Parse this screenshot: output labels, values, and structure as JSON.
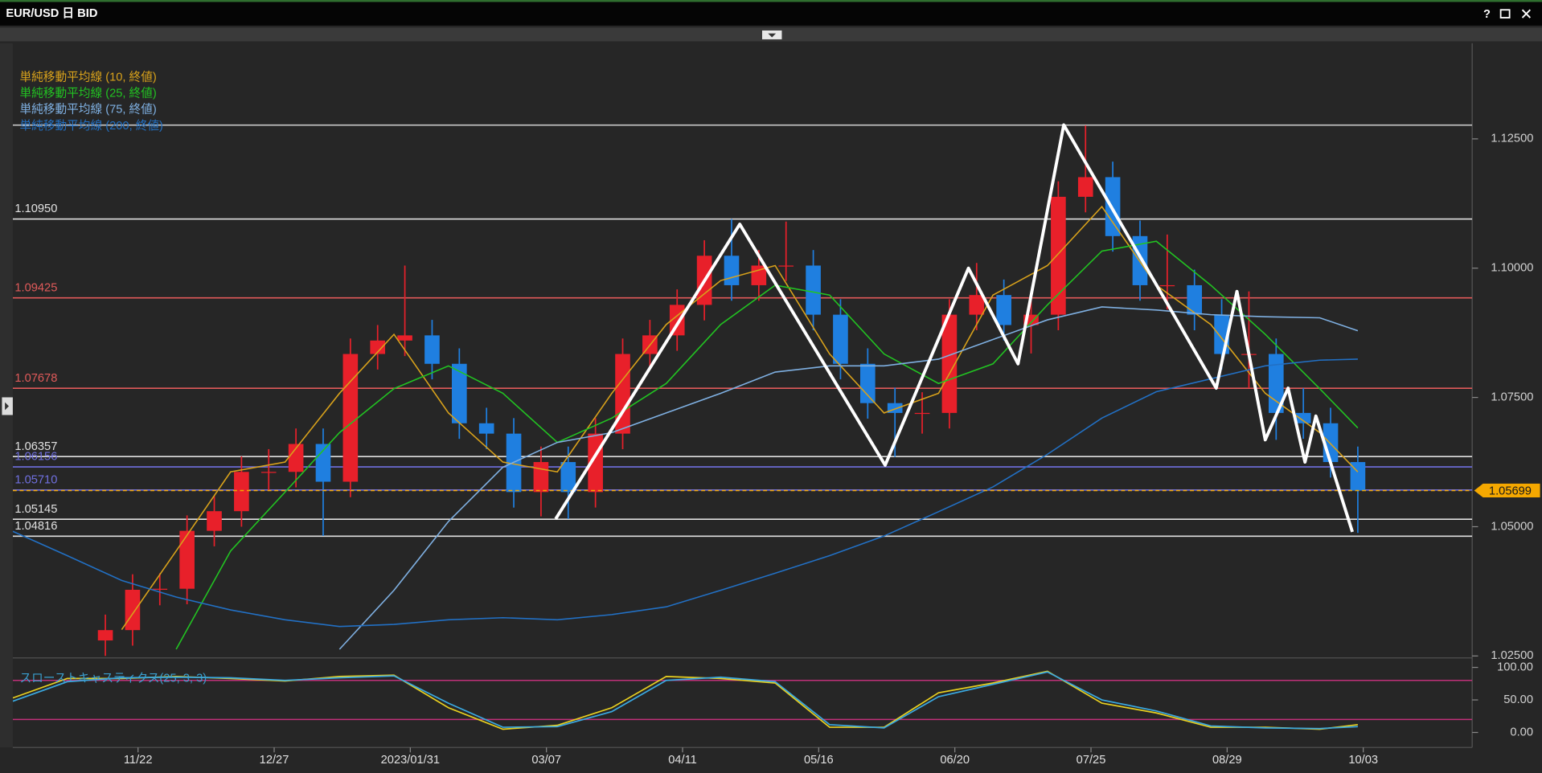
{
  "window": {
    "title": "EUR/USD 日 BID",
    "help": "?"
  },
  "chart_data": [
    {
      "type": "candlestick",
      "x": [
        17,
        22,
        27,
        32,
        37,
        42,
        47,
        52,
        57,
        62,
        67,
        72,
        77,
        82,
        87,
        92,
        97,
        102,
        107,
        112,
        117,
        122,
        127,
        132,
        137,
        142,
        147,
        152,
        157,
        162,
        167,
        172,
        177,
        182,
        187,
        192,
        197,
        202,
        207,
        212,
        217,
        222,
        227,
        232,
        237,
        242,
        247
      ],
      "open": [
        1.028,
        1.03,
        1.0378,
        1.038,
        1.0492,
        1.053,
        1.0606,
        1.0606,
        1.066,
        1.0587,
        1.0834,
        1.086,
        1.087,
        1.0815,
        1.07,
        1.068,
        1.0567,
        1.0625,
        1.0567,
        1.068,
        1.0834,
        1.087,
        1.0929,
        1.1024,
        1.0967,
        1.1005,
        1.1005,
        1.091,
        1.0815,
        1.0739,
        1.072,
        1.072,
        1.091,
        1.0948,
        1.089,
        1.091,
        1.1138,
        1.1176,
        1.1062,
        1.0967,
        1.0967,
        1.091,
        1.0834,
        1.0834,
        1.072,
        1.07,
        1.0625
      ],
      "high": [
        1.033,
        1.0408,
        1.041,
        1.0522,
        1.056,
        1.0636,
        1.065,
        1.069,
        1.069,
        1.0864,
        1.089,
        1.1005,
        1.09,
        1.0845,
        1.073,
        1.071,
        1.0655,
        1.0655,
        1.071,
        1.0864,
        1.09,
        1.0959,
        1.1054,
        1.1095,
        1.1035,
        1.109,
        1.1035,
        1.094,
        1.0845,
        1.0769,
        1.076,
        1.094,
        1.101,
        1.0978,
        1.094,
        1.1168,
        1.1276,
        1.1206,
        1.1092,
        1.1065,
        1.0997,
        1.094,
        1.0955,
        1.0864,
        1.0768,
        1.073,
        1.0655
      ],
      "low": [
        1.025,
        1.027,
        1.0348,
        1.035,
        1.0462,
        1.05,
        1.057,
        1.0576,
        1.0482,
        1.0557,
        1.0804,
        1.083,
        1.0785,
        1.067,
        1.065,
        1.0537,
        1.052,
        1.0515,
        1.0537,
        1.065,
        1.0804,
        1.084,
        1.0899,
        1.0937,
        1.0937,
        1.0975,
        1.088,
        1.0785,
        1.0709,
        1.0635,
        1.068,
        1.069,
        1.088,
        1.086,
        1.0835,
        1.088,
        1.1108,
        1.1032,
        1.0937,
        1.092,
        1.088,
        1.0804,
        1.0768,
        1.0668,
        1.067,
        1.0595,
        1.0488
      ],
      "close": [
        1.03,
        1.0378,
        1.038,
        1.0492,
        1.053,
        1.0606,
        1.0606,
        1.066,
        1.0587,
        1.0834,
        1.086,
        1.087,
        1.0815,
        1.07,
        1.068,
        1.0567,
        1.0625,
        1.0567,
        1.068,
        1.0834,
        1.087,
        1.0929,
        1.1024,
        1.0967,
        1.1005,
        1.1005,
        1.091,
        1.0815,
        1.0739,
        1.072,
        1.072,
        1.091,
        1.0948,
        1.089,
        1.091,
        1.1138,
        1.1176,
        1.1062,
        1.0967,
        1.0967,
        1.091,
        1.0834,
        1.0834,
        1.072,
        1.07,
        1.0625,
        1.057
      ],
      "up_color": "#e8202a",
      "down_color": "#1f7fe0",
      "xlim": [
        0,
        268
      ],
      "ylim": [
        1.025,
        1.1433
      ],
      "yticks": [
        {
          "value": 1.025,
          "label": "1.02500"
        },
        {
          "value": 1.05,
          "label": "1.05000"
        },
        {
          "value": 1.075,
          "label": "1.07500"
        },
        {
          "value": 1.1,
          "label": "1.10000"
        },
        {
          "value": 1.125,
          "label": "1.12500"
        }
      ],
      "series": [
        {
          "name": "単純移動平均線 (10, 終値)",
          "color": "#d9a21b",
          "x": [
            0,
            10,
            20,
            30,
            40,
            50,
            60,
            70,
            80,
            90,
            100,
            110,
            120,
            130,
            140,
            150,
            160,
            170,
            180,
            190,
            200,
            210,
            220,
            230,
            240,
            247
          ],
          "values": [
            null,
            null,
            1.0301,
            1.0453,
            1.0606,
            1.0625,
            1.0758,
            1.0872,
            1.072,
            1.0625,
            1.0606,
            1.0758,
            1.0891,
            1.0976,
            1.1005,
            1.0834,
            1.072,
            1.0758,
            1.0948,
            1.1005,
            1.1119,
            1.0967,
            1.0891,
            1.0758,
            1.0682,
            1.0606
          ]
        },
        {
          "name": "単純移動平均線 (25, 終値)",
          "color": "#22c322",
          "x": [
            0,
            10,
            20,
            30,
            40,
            50,
            60,
            70,
            80,
            90,
            100,
            110,
            120,
            130,
            140,
            150,
            160,
            170,
            180,
            190,
            200,
            210,
            220,
            230,
            240,
            247
          ],
          "values": [
            null,
            null,
            null,
            1.0263,
            1.0453,
            1.0567,
            1.0682,
            1.0767,
            1.0811,
            1.0758,
            1.0663,
            1.071,
            1.0777,
            1.0891,
            1.0967,
            1.0948,
            1.0834,
            1.0777,
            1.0815,
            1.0929,
            1.1033,
            1.1052,
            1.0967,
            1.0872,
            1.0767,
            1.0691
          ]
        },
        {
          "name": "単純移動平均線 (75, 終値)",
          "color": "#7fb0e2",
          "x": [
            0,
            10,
            20,
            30,
            40,
            50,
            60,
            70,
            80,
            90,
            100,
            110,
            120,
            130,
            140,
            150,
            160,
            170,
            180,
            190,
            200,
            210,
            220,
            230,
            240,
            247
          ],
          "values": [
            null,
            null,
            null,
            null,
            null,
            null,
            1.0263,
            1.0377,
            1.051,
            1.0615,
            1.0663,
            1.0682,
            1.072,
            1.0758,
            1.0799,
            1.0811,
            1.0811,
            1.0824,
            1.0862,
            1.09,
            1.0925,
            1.0919,
            1.091,
            1.0906,
            1.0904,
            1.0879
          ]
        },
        {
          "name": "単純移動平均線 (200, 終値)",
          "color": "#2270c4",
          "x": [
            0,
            10,
            20,
            30,
            40,
            50,
            60,
            70,
            80,
            90,
            100,
            110,
            120,
            130,
            140,
            150,
            160,
            170,
            180,
            190,
            200,
            210,
            220,
            230,
            240,
            247
          ],
          "values": [
            1.0491,
            1.0444,
            1.0396,
            1.0364,
            1.0339,
            1.032,
            1.0307,
            1.0311,
            1.032,
            1.0324,
            1.032,
            1.033,
            1.0345,
            1.0377,
            1.041,
            1.0444,
            1.0482,
            1.0529,
            1.0577,
            1.064,
            1.071,
            1.0761,
            1.0786,
            1.0811,
            1.0822,
            1.0824
          ]
        }
      ],
      "levels": [
        {
          "value": 1.12766,
          "color": "#c8c8c8"
        },
        {
          "value": 1.1095,
          "label": "1.10950",
          "color": "#e0e0e0"
        },
        {
          "value": 1.09425,
          "color": "#e05a5a"
        },
        {
          "value": 1.07678,
          "color": "#e05a5a"
        },
        {
          "value": 1.06357,
          "color": "#e0e0e0"
        },
        {
          "value": 1.06156,
          "color": "#7070e0"
        },
        {
          "value": 1.0571,
          "label": "1.05710",
          "color": "#7070e0"
        },
        {
          "value": 1.05145,
          "color": "#e0e0e0"
        },
        {
          "value": 1.04816,
          "color": "#e0e0e0"
        }
      ],
      "current_price": {
        "value": 1.05699,
        "color": "#f5a800"
      },
      "annotation": {
        "color": "#ffffff",
        "x": [
          99.7,
          133.5,
          160.2,
          175.5,
          184.6,
          193,
          221,
          224.8,
          230,
          234.2,
          237.3,
          239.3,
          246
        ],
        "y": [
          1.0515,
          1.1085,
          1.0619,
          1.1,
          1.0815,
          1.1277,
          1.0768,
          1.0955,
          1.0668,
          1.0768,
          1.0625,
          1.0714,
          1.049
        ]
      }
    },
    {
      "type": "line",
      "title": "スローストキャスティクス(25, 3, 3)",
      "x": [
        0,
        10,
        20,
        30,
        40,
        50,
        60,
        70,
        80,
        90,
        100,
        110,
        120,
        130,
        140,
        150,
        160,
        170,
        180,
        190,
        200,
        210,
        220,
        230,
        240,
        247
      ],
      "series": [
        {
          "color": "#e8d020",
          "values": [
            53,
            83,
            83,
            86,
            83,
            79,
            86,
            88,
            38,
            5,
            11,
            38,
            86,
            83,
            76,
            8,
            8,
            61,
            76,
            94,
            45,
            30,
            8,
            8,
            5,
            12
          ]
        },
        {
          "color": "#3aa8e0",
          "values": [
            48,
            78,
            84,
            85,
            84,
            80,
            84,
            87,
            45,
            8,
            9,
            32,
            80,
            85,
            78,
            12,
            7,
            55,
            74,
            93,
            50,
            33,
            10,
            7,
            6,
            9
          ]
        }
      ],
      "levels": [
        {
          "value": 80,
          "color": "#c0307a"
        },
        {
          "value": 20,
          "color": "#c0307a"
        }
      ],
      "xlim": [
        0,
        268
      ],
      "ylim": [
        -20,
        110
      ],
      "yticks": [
        {
          "value": 0,
          "label": "0.00"
        },
        {
          "value": 50,
          "label": "50.00"
        },
        {
          "value": 100,
          "label": "100.00"
        }
      ],
      "xticks": [
        {
          "value": 23,
          "label": "11/22"
        },
        {
          "value": 48,
          "label": "12/27"
        },
        {
          "value": 73,
          "label": "2023/01/31"
        },
        {
          "value": 98,
          "label": "03/07"
        },
        {
          "value": 123,
          "label": "04/11"
        },
        {
          "value": 148,
          "label": "05/16"
        },
        {
          "value": 173,
          "label": "06/20"
        },
        {
          "value": 198,
          "label": "07/25"
        },
        {
          "value": 223,
          "label": "08/29"
        },
        {
          "value": 248,
          "label": "10/03"
        }
      ]
    }
  ]
}
